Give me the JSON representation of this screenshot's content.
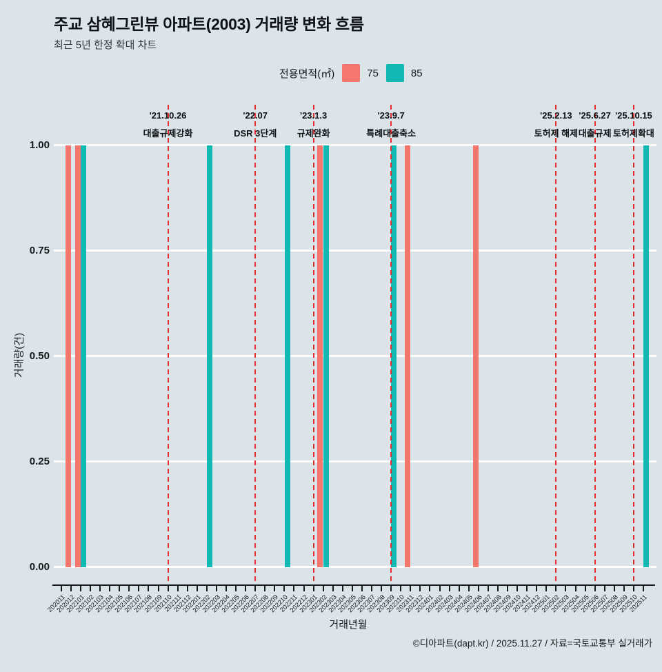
{
  "title": "주교 삼혜그린뷰 아파트(2003) 거래량 변화 흐름",
  "subtitle": "최근 5년 한정 확대 차트",
  "legend": {
    "label": "전용면적(㎡)",
    "items": [
      {
        "name": "75",
        "color": "#f4766c"
      },
      {
        "name": "85",
        "color": "#12b9b2"
      }
    ]
  },
  "footer": "©디아파트(dapt.kr) / 2025.11.27 / 자료=국토교통부 실거래가",
  "chart_data": {
    "type": "bar",
    "title": "주교 삼혜그린뷰 아파트(2003) 거래량 변화 흐름",
    "xlabel": "거래년월",
    "ylabel": "거래량(건)",
    "ylim": [
      0,
      1
    ],
    "yticks": [
      "0.00",
      "0.25",
      "0.50",
      "0.75",
      "1.00"
    ],
    "grid": "white horizontal major gridlines",
    "legend_position": "top",
    "categories": [
      "202011",
      "202012",
      "202101",
      "202102",
      "202103",
      "202104",
      "202105",
      "202106",
      "202107",
      "202108",
      "202109",
      "202110",
      "202111",
      "202112",
      "202201",
      "202202",
      "202203",
      "202204",
      "202205",
      "202206",
      "202207",
      "202208",
      "202209",
      "202210",
      "202211",
      "202212",
      "202301",
      "202302",
      "202303",
      "202304",
      "202305",
      "202306",
      "202307",
      "202308",
      "202309",
      "202310",
      "202311",
      "202312",
      "202401",
      "202402",
      "202403",
      "202404",
      "202405",
      "202406",
      "202407",
      "202408",
      "202409",
      "202410",
      "202411",
      "202412",
      "202501",
      "202502",
      "202503",
      "202504",
      "202505",
      "202506",
      "202507",
      "202508",
      "202509",
      "202510",
      "202511"
    ],
    "series": [
      {
        "name": "75",
        "color": "#f4766c",
        "bar_value": 1,
        "months_with_trades": [
          "202012",
          "202101",
          "202302",
          "202311",
          "202406"
        ]
      },
      {
        "name": "85",
        "color": "#12b9b2",
        "bar_value": 1,
        "months_with_trades": [
          "202101",
          "202202",
          "202210",
          "202302",
          "202309",
          "202511"
        ]
      }
    ],
    "annotations": [
      {
        "month": "202110",
        "date": "'21.10.26",
        "label": "대출규제강화",
        "line_color": "#e62e2e"
      },
      {
        "month": "202207",
        "date": "'22.07",
        "label": "DSR 3단계",
        "line_color": "#e62e2e"
      },
      {
        "month": "202301",
        "date": "'23.1.3",
        "label": "규제완화",
        "line_color": "#e62e2e"
      },
      {
        "month": "202309",
        "date": "'23.9.7",
        "label": "특례대출축소",
        "line_color": "#e62e2e"
      },
      {
        "month": "202502",
        "date": "'25.2.13",
        "label": "토허제 해제",
        "line_color": "#e62e2e"
      },
      {
        "month": "202506",
        "date": "'25.6.27",
        "label": "대출규제",
        "line_color": "#e62e2e"
      },
      {
        "month": "202510",
        "date": "'25.10.15",
        "label": "토허제확대",
        "line_color": "#e62e2e"
      }
    ]
  }
}
